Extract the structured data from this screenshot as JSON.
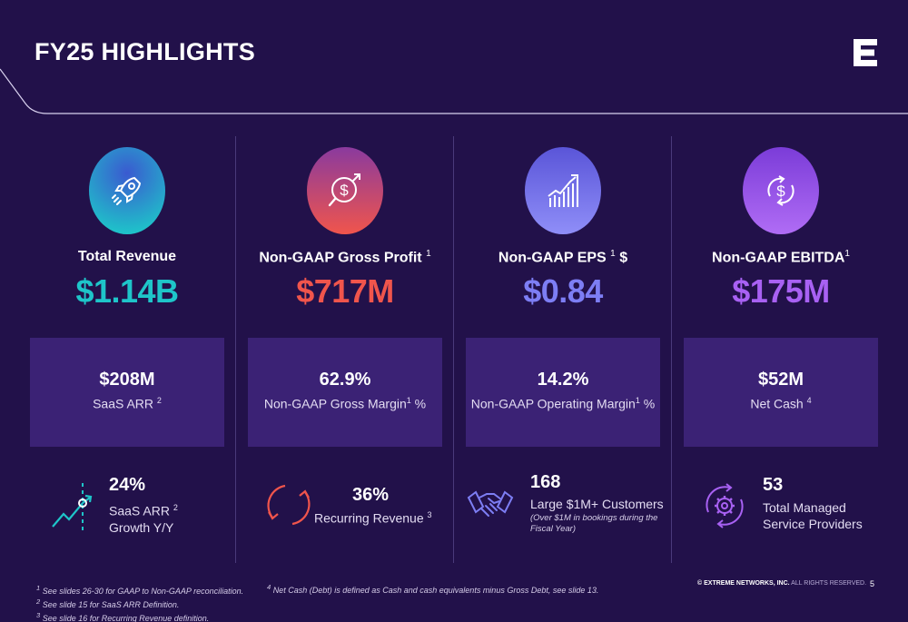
{
  "header": {
    "title": "FY25 HIGHLIGHTS"
  },
  "colors": {
    "background": "#22114a",
    "teal": "#1ec5c9",
    "coral": "#f0554c",
    "periwinkle": "#7d7ef4",
    "violet": "#a861f3",
    "box": "#3b2275"
  },
  "metrics": [
    {
      "icon": "rocket-icon",
      "title": "Total Revenue",
      "title_sup": "",
      "value": "$1.14B",
      "box_value": "$208M",
      "box_label": "SaaS ARR",
      "box_sup": "2",
      "stat_icon": "growth-chart-icon",
      "stat_value": "24%",
      "stat_label_1": "SaaS ARR",
      "stat_sup": "2",
      "stat_label_2": "Growth Y/Y"
    },
    {
      "icon": "dollar-search-icon",
      "title": "Non-GAAP Gross Profit",
      "title_sup": "1",
      "value": "$717M",
      "box_value": "62.9%",
      "box_label": "Non-GAAP Gross Margin",
      "box_sup": "1",
      "box_suffix": "%",
      "stat_icon": "recurring-arrows-icon",
      "stat_value": "36%",
      "stat_label_1": "Recurring Revenue",
      "stat_sup": "3"
    },
    {
      "icon": "bar-chart-icon",
      "title": "Non-GAAP EPS",
      "title_sup": "1",
      "title_suffix": "$",
      "value": "$0.84",
      "box_value": "14.2%",
      "box_label": "Non-GAAP Operating Margin",
      "box_sup": "1",
      "box_suffix": "%",
      "stat_icon": "handshake-icon",
      "stat_value": "168",
      "stat_label_1": "Large $1M+ Customers",
      "stat_note": "(Over $1M in bookings during the Fiscal Year)"
    },
    {
      "icon": "dollar-cycle-icon",
      "title": "Non-GAAP EBITDA",
      "title_sup": "1",
      "value": "$175M",
      "box_value": "$52M",
      "box_label": "Net Cash",
      "box_sup": "4",
      "stat_icon": "gear-cycle-icon",
      "stat_value": "53",
      "stat_label_1": "Total Managed",
      "stat_label_2": "Service Providers"
    }
  ],
  "footnotes": {
    "fn1": "See slides 26-30 for GAAP to Non-GAAP reconciliation.",
    "fn2": "See slide 15 for SaaS ARR Definition.",
    "fn3": "See slide 16 for Recurring Revenue definition.",
    "fn4": "Net Cash (Debt) is defined as Cash and cash equivalents minus Gross Debt, see slide 13."
  },
  "footer": {
    "copyright_brand": "© EXTREME NETWORKS, INC.",
    "copyright_rest": "ALL RIGHTS RESERVED.",
    "page": "5"
  }
}
